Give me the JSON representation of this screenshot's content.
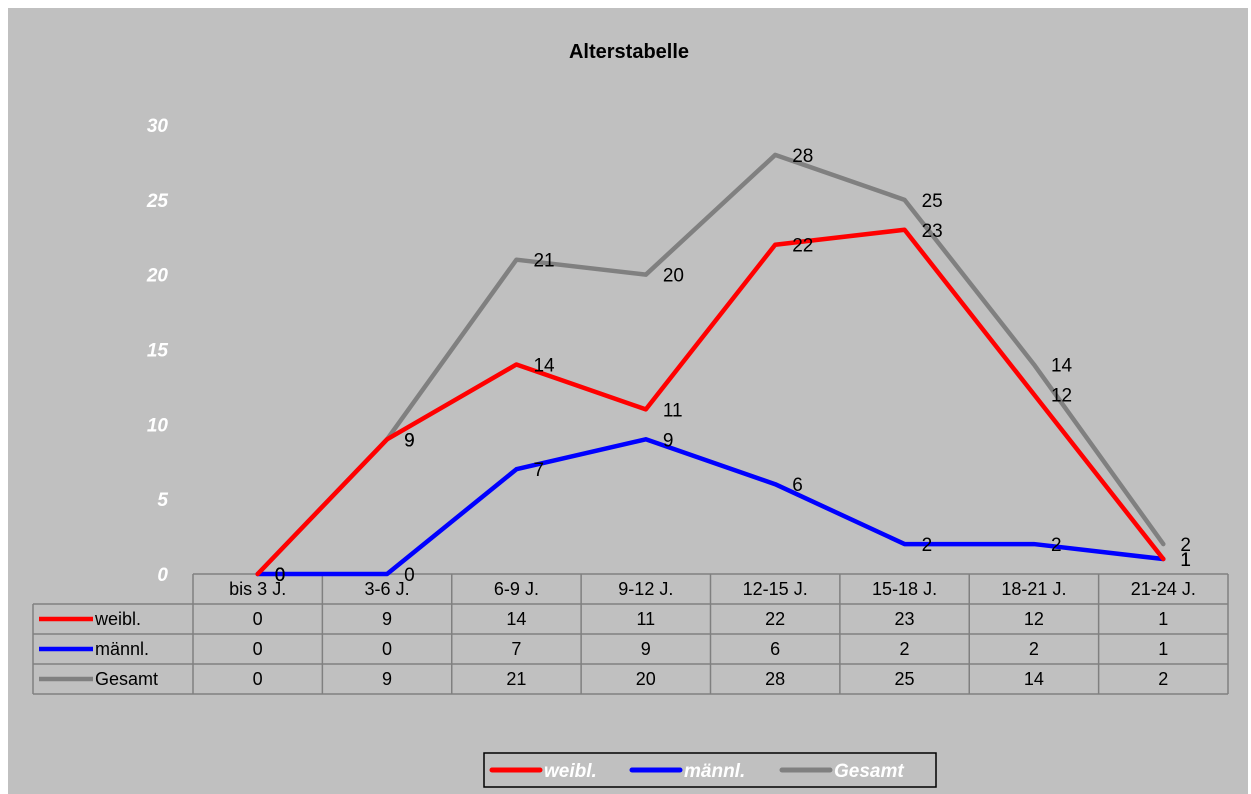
{
  "chart_data": {
    "type": "line",
    "title": "Alterstabelle",
    "categories": [
      "bis 3 J.",
      "3-6 J.",
      "6-9 J.",
      "9-12 J.",
      "12-15 J.",
      "15-18 J.",
      "18-21 J.",
      "21-24 J."
    ],
    "ylim": [
      0,
      30
    ],
    "yticks": [
      0,
      5,
      10,
      15,
      20,
      25,
      30
    ],
    "grid": false,
    "legend_position": "bottom",
    "data_table": true,
    "series": [
      {
        "name": "weibl.",
        "color": "#ff0000",
        "values": [
          0,
          9,
          14,
          11,
          22,
          23,
          12,
          1
        ]
      },
      {
        "name": "männl.",
        "color": "#0000ff",
        "values": [
          0,
          0,
          7,
          9,
          6,
          2,
          2,
          1
        ]
      },
      {
        "name": "Gesamt",
        "color": "#808080",
        "values": [
          0,
          9,
          21,
          20,
          28,
          25,
          14,
          2
        ]
      }
    ]
  }
}
